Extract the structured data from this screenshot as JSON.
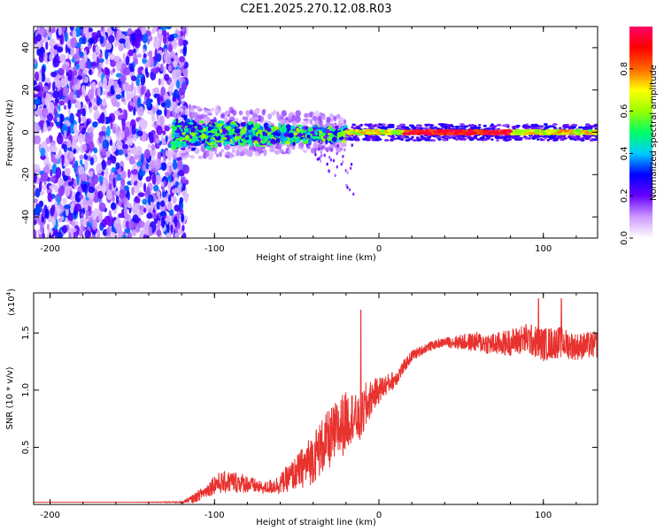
{
  "figure": {
    "title": "C2E1.2025.270.12.08.R03"
  },
  "chart_data": [
    {
      "type": "heatmap",
      "id": "spectrogram",
      "title": "",
      "xlabel": "Height of straight line (km)",
      "ylabel": "Frequency (Hz)",
      "xlim": [
        -210,
        133
      ],
      "ylim": [
        -50,
        50
      ],
      "xticks": [
        -200,
        -100,
        0,
        100
      ],
      "yticks": [
        -40,
        -20,
        0,
        20,
        40
      ],
      "colorbar": {
        "label": "Normalized spectral amplitude",
        "range": [
          0,
          1
        ],
        "ticks": [
          0.0,
          0.2,
          0.4,
          0.6,
          0.8
        ],
        "tick_labels": [
          "0.0",
          "0.2",
          "0.4",
          "0.6",
          "0.8"
        ],
        "colormap": [
          "#ffffff",
          "#cc99ff",
          "#6600ff",
          "#0000ff",
          "#00ccff",
          "#00ff66",
          "#99ff00",
          "#ffff00",
          "#ff6600",
          "#ff0000",
          "#ff0066"
        ]
      },
      "regions": [
        {
          "name": "noise",
          "x_range": [
            -210,
            -125
          ],
          "freq_range": [
            -50,
            50
          ],
          "amplitude": 0.15
        },
        {
          "name": "transition",
          "x_range": [
            -125,
            -20
          ],
          "freq_center": 0,
          "freq_halfwidth": 8,
          "amplitude": 0.35
        },
        {
          "name": "carrier",
          "x_range": [
            -20,
            133
          ],
          "freq_center": 0,
          "freq_halfwidth": 2,
          "amplitude": 0.9
        }
      ]
    },
    {
      "type": "line",
      "id": "snr",
      "title": "",
      "xlabel": "Height of straight line (km)",
      "ylabel": "SNR (10 * v/v)",
      "y_multiplier_label": "(x10",
      "y_multiplier_exp": "4",
      "xlim": [
        -210,
        133
      ],
      "ylim": [
        0,
        1.85
      ],
      "xticks": [
        -200,
        -100,
        0,
        100
      ],
      "yticks": [
        0.5,
        1.0,
        1.5
      ],
      "ytick_labels": [
        "0.5",
        "1.0",
        "1.5"
      ],
      "color": "#e8322e",
      "series": [
        {
          "name": "SNR",
          "x": [
            -210,
            -150,
            -120,
            -113,
            -105,
            -100,
            -90,
            -80,
            -70,
            -60,
            -50,
            -42,
            -35,
            -28,
            -22,
            -16,
            -12,
            -8,
            -4,
            0,
            5,
            10,
            15,
            20,
            30,
            40,
            50,
            60,
            70,
            80,
            90,
            100,
            110,
            120,
            133
          ],
          "y": [
            0.02,
            0.02,
            0.02,
            0.05,
            0.12,
            0.18,
            0.2,
            0.18,
            0.14,
            0.18,
            0.28,
            0.38,
            0.5,
            0.6,
            0.7,
            0.78,
            0.72,
            0.85,
            0.95,
            1.0,
            1.05,
            1.1,
            1.2,
            1.3,
            1.38,
            1.42,
            1.42,
            1.42,
            1.4,
            1.42,
            1.45,
            1.4,
            1.42,
            1.38,
            1.4
          ],
          "noise": [
            0.0,
            0.0,
            0.005,
            0.04,
            0.06,
            0.09,
            0.1,
            0.08,
            0.05,
            0.09,
            0.15,
            0.22,
            0.25,
            0.27,
            0.28,
            0.22,
            0.2,
            0.22,
            0.14,
            0.12,
            0.09,
            0.08,
            0.06,
            0.05,
            0.04,
            0.04,
            0.07,
            0.09,
            0.1,
            0.12,
            0.14,
            0.15,
            0.14,
            0.12,
            0.12
          ]
        }
      ],
      "annotations": [
        {
          "x": -11,
          "y": 1.7,
          "text": "spike"
        },
        {
          "x": 97,
          "y": 1.8,
          "text": "spike"
        },
        {
          "x": 111,
          "y": 1.8,
          "text": "spike"
        }
      ]
    }
  ]
}
